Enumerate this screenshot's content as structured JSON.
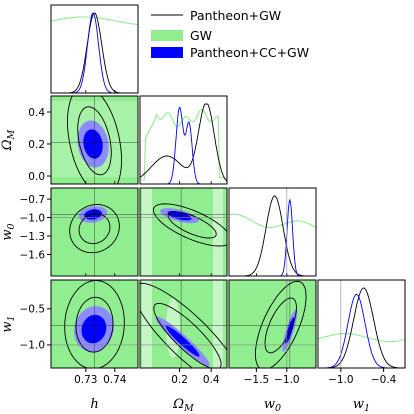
{
  "chart_data": {
    "type": "scatter",
    "subtype": "corner-plot",
    "parameters": [
      "h",
      "Ω_M",
      "w_0",
      "w_1"
    ],
    "axis_labels": {
      "h": {
        "base": "h",
        "sub": ""
      },
      "omega": {
        "base": "Ω",
        "sub": "M"
      },
      "w0": {
        "base": "w",
        "sub": "0"
      },
      "w1": {
        "base": "w",
        "sub": "1"
      }
    },
    "ranges": {
      "h": [
        0.718,
        0.748
      ],
      "omega": [
        -0.05,
        0.5
      ],
      "w0": [
        -1.95,
        -0.52
      ],
      "w1": [
        -1.32,
        -0.1
      ]
    },
    "ticks": {
      "h": {
        "values": [
          0.73,
          0.74
        ],
        "labels": [
          "0.73",
          "0.74"
        ]
      },
      "omega": {
        "values": [
          0.2,
          0.4
        ],
        "labels": [
          "0.2",
          "0.4"
        ]
      },
      "omega_y": {
        "values": [
          0.0,
          0.2,
          0.4
        ],
        "labels": [
          "0.0",
          "0.2",
          "0.4"
        ]
      },
      "w0": {
        "values": [
          -1.5,
          -1.0
        ],
        "labels": [
          "−1.5",
          "−1.0"
        ]
      },
      "w0_y": {
        "values": [
          -1.6,
          -1.3,
          -1.0,
          -0.7
        ],
        "labels": [
          "−1.6",
          "−1.3",
          "−1.0",
          "−0.7"
        ]
      },
      "w1": {
        "values": [
          -1.0,
          -0.4
        ],
        "labels": [
          "−1.0",
          "−0.4"
        ]
      },
      "w1_y": {
        "values": [
          -1.0,
          -0.5
        ],
        "labels": [
          "−1.0",
          "−0.5"
        ]
      }
    },
    "reference_lines": {
      "w0": -1.0,
      "w1": -1.0
    },
    "best_fit": {
      "h": 0.733,
      "omega": 0.21,
      "w0": -0.95,
      "w1": -0.73
    },
    "series": [
      {
        "name": "Pantheon+GW",
        "style": "line",
        "color": "#000000"
      },
      {
        "name": "GW",
        "style": "filled",
        "color": "#90ee90"
      },
      {
        "name": "Pantheon+CC+GW",
        "style": "filled",
        "color": "#0000ff"
      }
    ],
    "legend_position": "top-right"
  }
}
